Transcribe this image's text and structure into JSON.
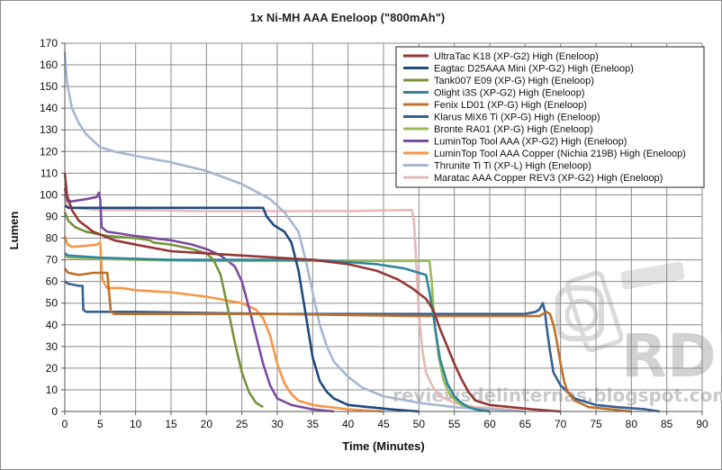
{
  "chart_data": {
    "type": "line",
    "title": "1x Ni-MH AAA Eneloop (\"800mAh\")",
    "xlabel": "Time (Minutes)",
    "ylabel": "Lumen",
    "xlim": [
      0,
      90
    ],
    "ylim": [
      0,
      170
    ],
    "xticks": [
      0,
      5,
      10,
      15,
      20,
      25,
      30,
      35,
      40,
      45,
      50,
      55,
      60,
      65,
      70,
      75,
      80,
      85,
      90
    ],
    "yticks": [
      0,
      10,
      20,
      30,
      40,
      50,
      60,
      70,
      80,
      90,
      100,
      110,
      120,
      130,
      140,
      150,
      160,
      170
    ],
    "grid": true,
    "legend_position": "top-right",
    "watermark": {
      "logo": "RDL",
      "site": "reviewsdelinternas.blogspot.com"
    },
    "series": [
      {
        "name": "UltraTac K18 (XP-G2) High (Eneloop)",
        "color": "#953735",
        "points": [
          [
            0,
            110
          ],
          [
            0.3,
            100
          ],
          [
            1,
            93
          ],
          [
            2,
            88
          ],
          [
            4,
            83
          ],
          [
            7,
            79
          ],
          [
            10,
            77
          ],
          [
            15,
            74
          ],
          [
            20,
            73
          ],
          [
            25,
            72
          ],
          [
            30,
            71
          ],
          [
            35,
            70
          ],
          [
            40,
            68
          ],
          [
            44,
            65
          ],
          [
            47,
            61
          ],
          [
            49,
            57
          ],
          [
            51,
            52
          ],
          [
            52,
            47
          ],
          [
            53,
            38
          ],
          [
            54,
            30
          ],
          [
            55,
            22
          ],
          [
            56,
            15
          ],
          [
            57,
            9
          ],
          [
            58,
            5
          ],
          [
            60,
            3
          ],
          [
            63,
            2
          ],
          [
            66,
            1
          ],
          [
            70,
            0
          ]
        ]
      },
      {
        "name": "Eagtac D25AAA Mini (XP-G2) High (Eneloop)",
        "color": "#1F497D",
        "points": [
          [
            0,
            95
          ],
          [
            0.5,
            94
          ],
          [
            5,
            94
          ],
          [
            10,
            94
          ],
          [
            15,
            94
          ],
          [
            20,
            94
          ],
          [
            25,
            94
          ],
          [
            28,
            94
          ],
          [
            28.5,
            90
          ],
          [
            29.5,
            86
          ],
          [
            31,
            83
          ],
          [
            32,
            78
          ],
          [
            33,
            65
          ],
          [
            34,
            45
          ],
          [
            35,
            25
          ],
          [
            36,
            14
          ],
          [
            37,
            9
          ],
          [
            38,
            6
          ],
          [
            40,
            3
          ],
          [
            43,
            2
          ],
          [
            46,
            1
          ],
          [
            50,
            0
          ]
        ]
      },
      {
        "name": "Tank007 E09 (XP-G) High (Eneloop)",
        "color": "#77933C",
        "points": [
          [
            0,
            92
          ],
          [
            0.5,
            88
          ],
          [
            1.5,
            85
          ],
          [
            3,
            83
          ],
          [
            6,
            81
          ],
          [
            10,
            80
          ],
          [
            12,
            79
          ],
          [
            12.5,
            78
          ],
          [
            15,
            77
          ],
          [
            18,
            75
          ],
          [
            20,
            73
          ],
          [
            21,
            70
          ],
          [
            22,
            63
          ],
          [
            23,
            48
          ],
          [
            24,
            32
          ],
          [
            25,
            18
          ],
          [
            26,
            9
          ],
          [
            27,
            4
          ],
          [
            28,
            2
          ]
        ]
      },
      {
        "name": "Olight i3S (XP-G2) High (Eneloop)",
        "color": "#31859C",
        "points": [
          [
            0,
            73
          ],
          [
            0.5,
            72
          ],
          [
            5,
            71
          ],
          [
            10,
            70.5
          ],
          [
            15,
            70
          ],
          [
            20,
            70
          ],
          [
            25,
            70
          ],
          [
            30,
            70
          ],
          [
            35,
            70
          ],
          [
            40,
            69
          ],
          [
            44,
            68
          ],
          [
            46,
            67
          ],
          [
            48,
            66
          ],
          [
            49,
            65
          ],
          [
            50,
            64
          ],
          [
            51,
            63
          ],
          [
            51.5,
            55
          ],
          [
            52,
            45
          ],
          [
            52.5,
            34
          ],
          [
            53,
            24
          ],
          [
            54,
            13
          ],
          [
            55,
            7
          ],
          [
            56,
            4
          ],
          [
            57,
            2
          ],
          [
            58,
            1
          ],
          [
            60,
            0
          ]
        ]
      },
      {
        "name": "Fenix LD01 (XP-G) High (Eneloop)",
        "color": "#C0702A",
        "points": [
          [
            0,
            66
          ],
          [
            0.5,
            64
          ],
          [
            2,
            63
          ],
          [
            4,
            64
          ],
          [
            6,
            64
          ],
          [
            6.5,
            46
          ],
          [
            7,
            45
          ],
          [
            10,
            45
          ],
          [
            20,
            45
          ],
          [
            30,
            45
          ],
          [
            40,
            44.5
          ],
          [
            50,
            44
          ],
          [
            60,
            44
          ],
          [
            66,
            44
          ],
          [
            67,
            44
          ],
          [
            68,
            46
          ],
          [
            68.5,
            45
          ],
          [
            69,
            40
          ],
          [
            69.5,
            32
          ],
          [
            70,
            22
          ],
          [
            70.5,
            14
          ],
          [
            71,
            9
          ],
          [
            72,
            5
          ],
          [
            74,
            2
          ],
          [
            77,
            1
          ],
          [
            80,
            0
          ]
        ]
      },
      {
        "name": "Klarus MiX6 Ti (XP-G) High (Eneloop)",
        "color": "#366092",
        "points": [
          [
            0,
            60
          ],
          [
            0.5,
            59
          ],
          [
            2,
            58
          ],
          [
            2.5,
            58
          ],
          [
            2.6,
            47
          ],
          [
            3,
            46
          ],
          [
            10,
            46
          ],
          [
            20,
            45.5
          ],
          [
            30,
            45
          ],
          [
            40,
            45
          ],
          [
            50,
            45
          ],
          [
            60,
            45
          ],
          [
            65,
            45
          ],
          [
            66.5,
            46
          ],
          [
            67,
            47
          ],
          [
            67.5,
            50
          ],
          [
            67.8,
            46
          ],
          [
            68,
            40
          ],
          [
            68.5,
            28
          ],
          [
            69,
            18
          ],
          [
            70,
            12
          ],
          [
            72,
            6
          ],
          [
            75,
            3
          ],
          [
            78,
            2
          ],
          [
            82,
            1
          ],
          [
            84,
            0
          ]
        ]
      },
      {
        "name": "Bronte RA01 (XP-G) High (Eneloop)",
        "color": "#9BBB59",
        "points": [
          [
            0,
            72
          ],
          [
            0.5,
            71
          ],
          [
            5,
            70.5
          ],
          [
            10,
            70
          ],
          [
            20,
            69.5
          ],
          [
            30,
            69.5
          ],
          [
            40,
            69.5
          ],
          [
            45,
            69.5
          ],
          [
            50,
            69.5
          ],
          [
            51.5,
            69.5
          ],
          [
            51.8,
            60
          ],
          [
            52,
            50
          ],
          [
            52.3,
            38
          ],
          [
            52.8,
            25
          ],
          [
            53.5,
            14
          ],
          [
            54.5,
            7
          ],
          [
            56,
            3
          ],
          [
            58,
            1
          ],
          [
            60,
            0
          ]
        ]
      },
      {
        "name": "LuminTop Tool AAA (XP-G2) High (Eneloop)",
        "color": "#7D4C9F",
        "points": [
          [
            0,
            103
          ],
          [
            0.4,
            97
          ],
          [
            1,
            97
          ],
          [
            3,
            98
          ],
          [
            4.5,
            99
          ],
          [
            4.8,
            101
          ],
          [
            5,
            98
          ],
          [
            5.2,
            85
          ],
          [
            6,
            83
          ],
          [
            10,
            81
          ],
          [
            15,
            79
          ],
          [
            18,
            77
          ],
          [
            20,
            75
          ],
          [
            22,
            72
          ],
          [
            24,
            67
          ],
          [
            25,
            60
          ],
          [
            26,
            48
          ],
          [
            27,
            35
          ],
          [
            28,
            22
          ],
          [
            29,
            12
          ],
          [
            30,
            6
          ],
          [
            32,
            3
          ],
          [
            35,
            1
          ],
          [
            38,
            0
          ]
        ]
      },
      {
        "name": "LuminTop Tool AAA Copper (Nichia 219B) High (Eneloop)",
        "color": "#F79646",
        "points": [
          [
            0,
            81
          ],
          [
            0.4,
            77
          ],
          [
            1,
            76
          ],
          [
            3,
            76.5
          ],
          [
            4.5,
            77
          ],
          [
            5,
            78
          ],
          [
            5.3,
            61
          ],
          [
            5.6,
            59
          ],
          [
            6,
            57
          ],
          [
            8,
            57
          ],
          [
            10,
            56
          ],
          [
            15,
            55
          ],
          [
            20,
            53
          ],
          [
            25,
            50
          ],
          [
            27,
            47
          ],
          [
            28,
            43
          ],
          [
            29,
            35
          ],
          [
            30,
            22
          ],
          [
            31,
            13
          ],
          [
            32,
            8
          ],
          [
            33,
            5
          ],
          [
            35,
            3
          ],
          [
            40,
            1
          ],
          [
            45,
            0
          ]
        ]
      },
      {
        "name": "Thrunite Ti Ti (XP-L) High (Eneloop)",
        "color": "#A6B6D3",
        "points": [
          [
            0,
            166
          ],
          [
            0.3,
            152
          ],
          [
            1,
            140
          ],
          [
            2,
            133
          ],
          [
            3,
            128
          ],
          [
            5,
            122
          ],
          [
            7,
            120
          ],
          [
            10,
            118
          ],
          [
            15,
            115
          ],
          [
            20,
            111
          ],
          [
            25,
            105
          ],
          [
            29,
            98
          ],
          [
            31,
            92
          ],
          [
            33,
            83
          ],
          [
            34,
            70
          ],
          [
            35,
            55
          ],
          [
            36,
            40
          ],
          [
            37,
            30
          ],
          [
            38,
            23
          ],
          [
            40,
            16
          ],
          [
            42,
            11
          ],
          [
            45,
            7
          ],
          [
            50,
            4
          ],
          [
            55,
            2
          ],
          [
            60,
            1
          ],
          [
            65,
            0
          ]
        ]
      },
      {
        "name": "Maratac AAA Copper REV3 (XP-G2) High (Eneloop)",
        "color": "#E6B9B8",
        "points": [
          [
            0,
            100
          ],
          [
            0.3,
            95
          ],
          [
            1,
            94
          ],
          [
            5,
            93
          ],
          [
            10,
            93
          ],
          [
            20,
            92.5
          ],
          [
            30,
            92.5
          ],
          [
            40,
            92.5
          ],
          [
            48,
            93
          ],
          [
            49,
            93
          ],
          [
            49.3,
            88
          ],
          [
            49.6,
            70
          ],
          [
            50,
            45
          ],
          [
            50.5,
            28
          ],
          [
            51,
            18
          ],
          [
            52,
            11
          ],
          [
            53,
            7
          ],
          [
            55,
            4
          ],
          [
            58,
            2
          ],
          [
            62,
            1
          ],
          [
            65,
            0
          ]
        ]
      }
    ]
  }
}
